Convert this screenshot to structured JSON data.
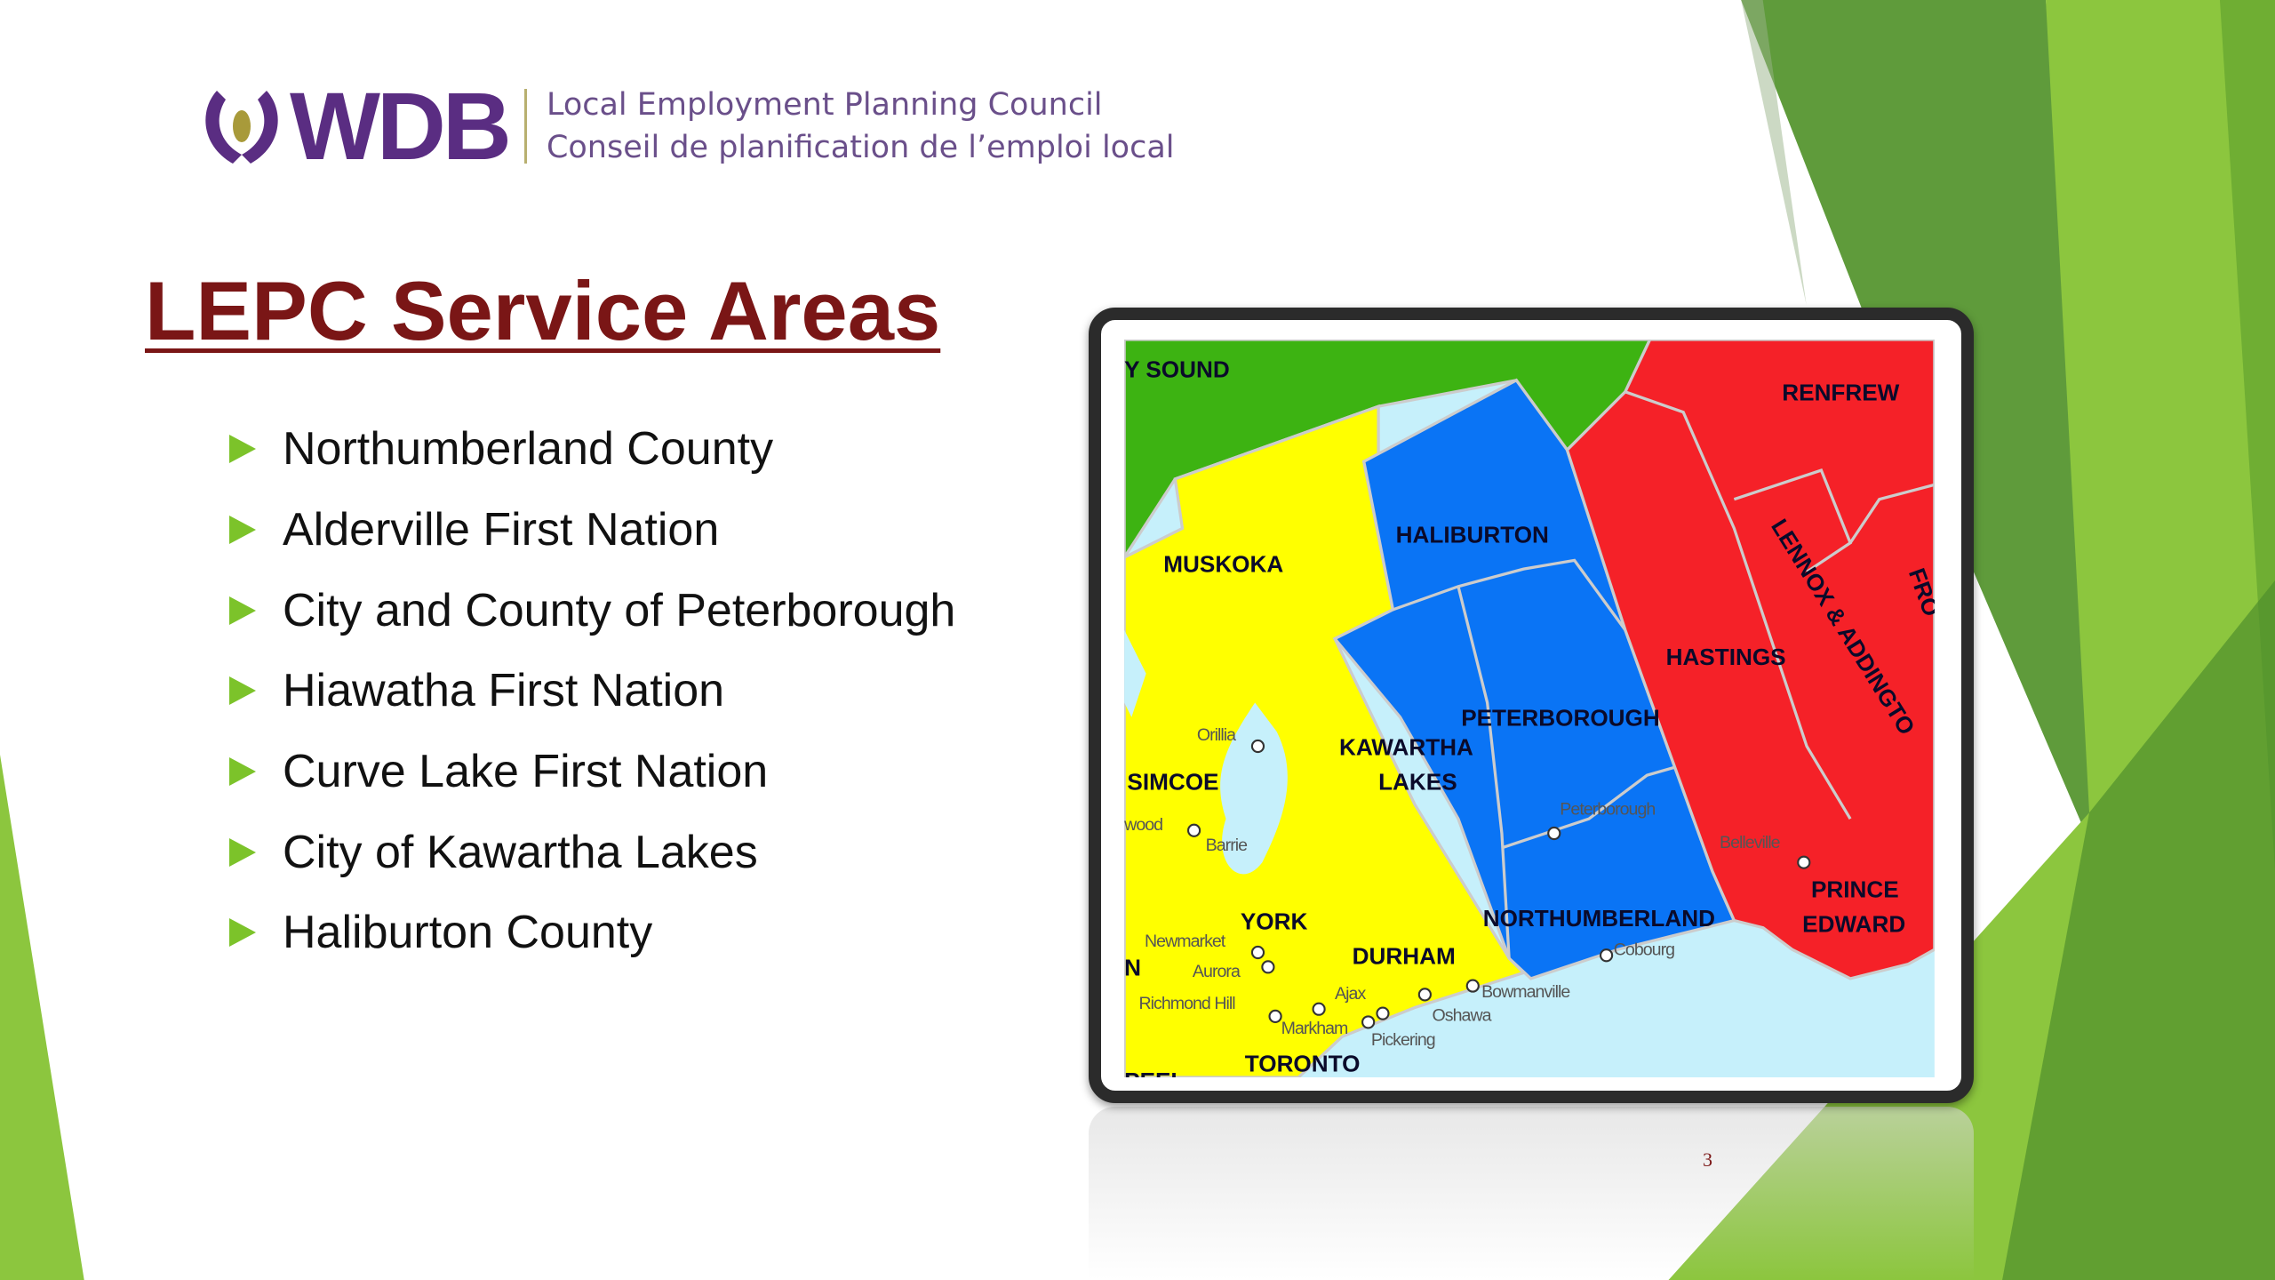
{
  "logo": {
    "text": "WDB",
    "line1": "Local Employment Planning Council",
    "line2": "Conseil de planification de l’emploi local",
    "brand_color": "#5a2d82"
  },
  "title": "LEPC Service Areas",
  "bullets": [
    "Northumberland County",
    "Alderville First Nation",
    "City and County of Peterborough",
    "Hiawatha First Nation",
    "Curve Lake First Nation",
    "City of Kawartha Lakes",
    "Haliburton County"
  ],
  "bullet_icon": "triangle-right-icon",
  "map": {
    "regions": {
      "parry_sound": "Y SOUND",
      "renfrew": "RENFREW",
      "muskoka": "MUSKOKA",
      "haliburton": "HALIBURTON",
      "hastings": "HASTINGS",
      "lennox": "LENNOX & ADDINGTO",
      "frontenac": "FRO",
      "peterborough": "PETERBOROUGH",
      "kawartha1": "KAWARTHA",
      "kawartha2": "LAKES",
      "simcoe": "SIMCOE",
      "york": "YORK",
      "durham": "DURHAM",
      "northumberland": "NORTHUMBERLAND",
      "prince1": "PRINCE",
      "prince2": "EDWARD",
      "toronto": "TORONTO",
      "n": "N",
      "peel": "PEEL"
    },
    "cities": {
      "orillia": "Orillia",
      "wood": "wood",
      "barrie": "Barrie",
      "newmarket": "Newmarket",
      "aurora": "Aurora",
      "richmond_hill": "Richmond Hill",
      "markham": "Markham",
      "ajax": "Ajax",
      "pickering": "Pickering",
      "oshawa": "Oshawa",
      "bowmanville": "Bowmanville",
      "cobourg": "Cobourg",
      "peterborough": "Peterborough",
      "belleville": "Belleville"
    },
    "colors": {
      "green": "#3db312",
      "yellow": "#ffff00",
      "blue": "#0a74f5",
      "red": "#f52128",
      "water": "#c6f0fb"
    }
  },
  "page_number": "3"
}
